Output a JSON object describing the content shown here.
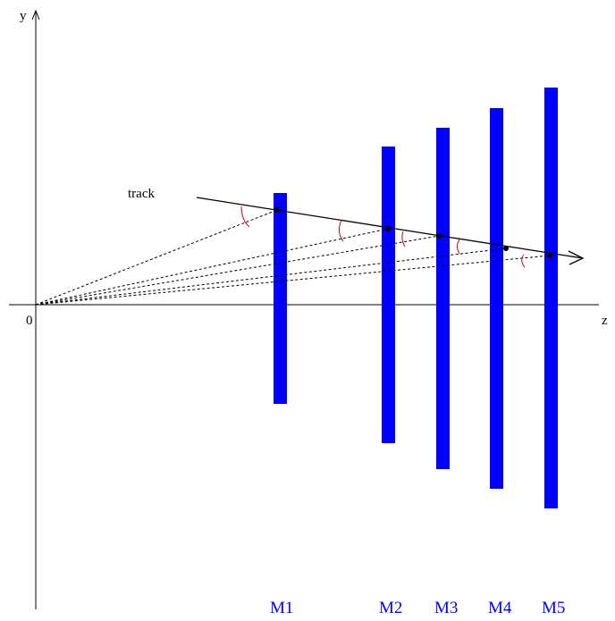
{
  "labels": {
    "y_axis": "y",
    "z_axis": "z",
    "origin": "0",
    "track": "track"
  },
  "planes": [
    {
      "label": "M1"
    },
    {
      "label": "M2"
    },
    {
      "label": "M3"
    },
    {
      "label": "M4"
    },
    {
      "label": "M5"
    }
  ],
  "colors": {
    "plane": "#0000ff",
    "plane_label": "#0000ff",
    "axis": "#000000",
    "track": "#000000",
    "projection_line": "#000000",
    "angle_arc": "#cc0000"
  }
}
